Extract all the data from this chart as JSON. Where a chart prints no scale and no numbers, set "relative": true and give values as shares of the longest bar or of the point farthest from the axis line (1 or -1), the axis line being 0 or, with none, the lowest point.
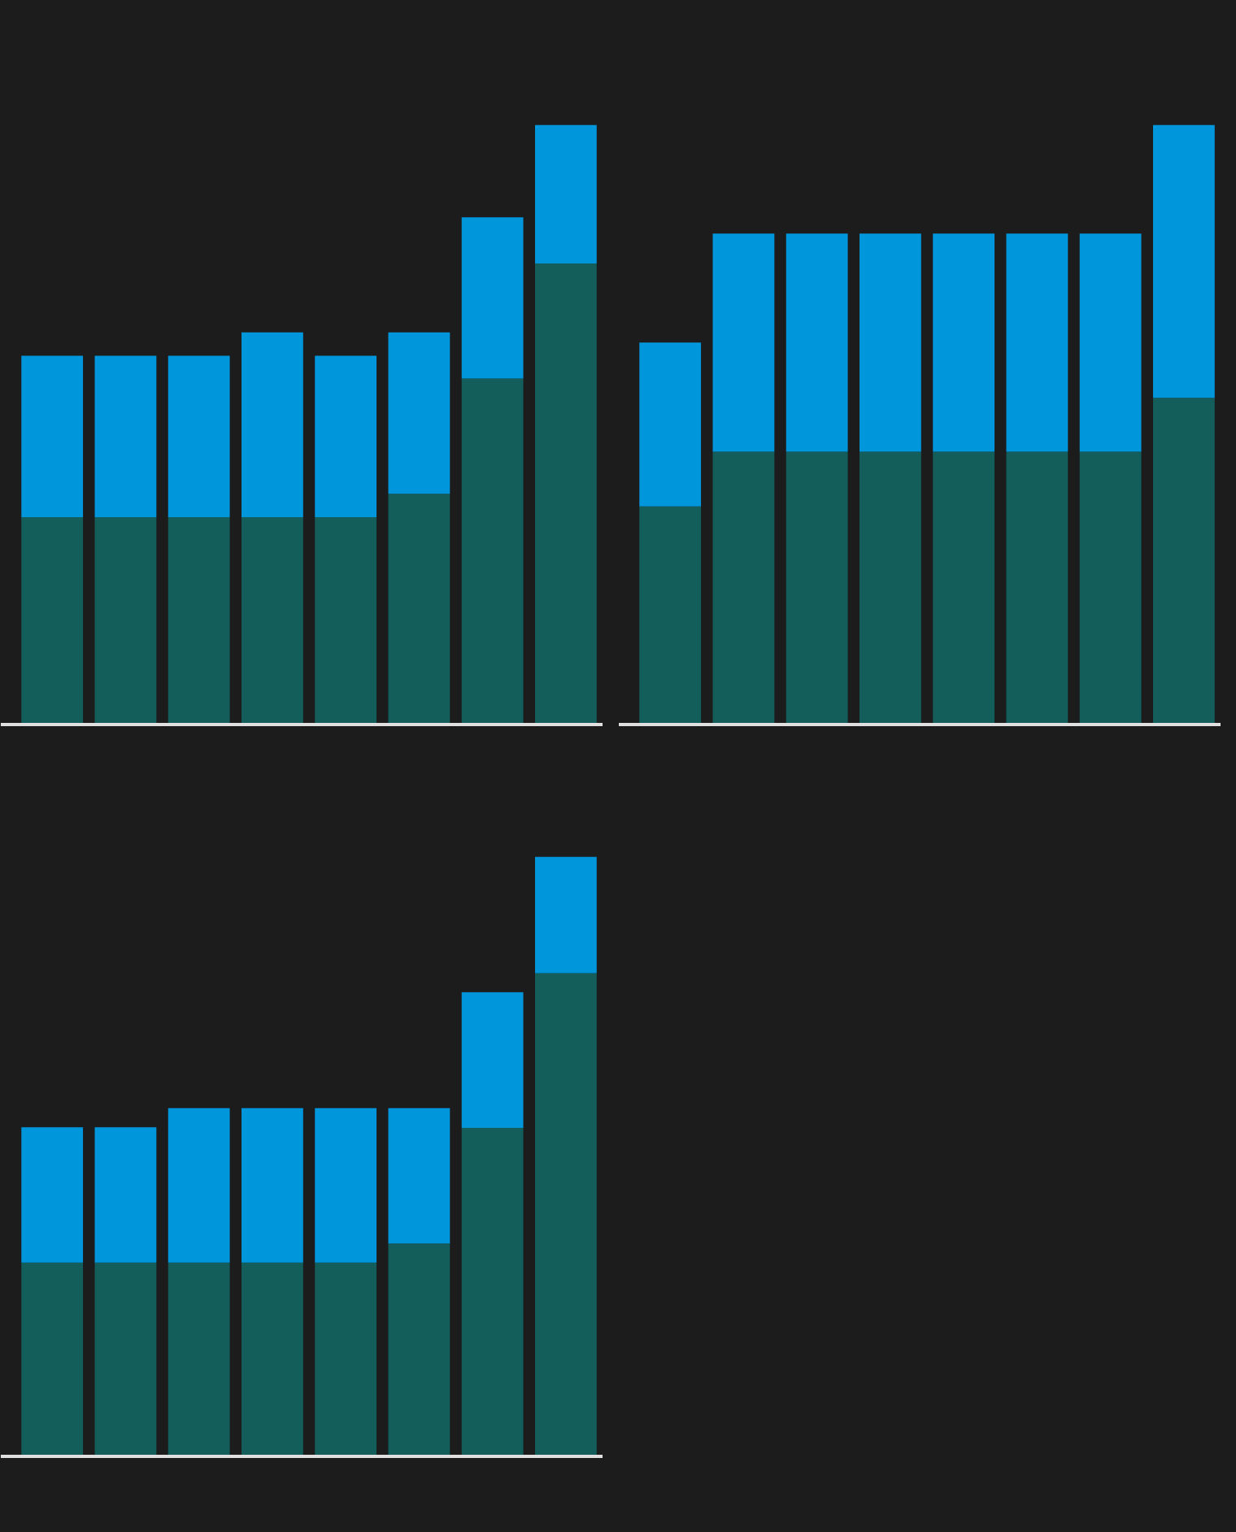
{
  "chart_data": [
    {
      "type": "bar",
      "stacked": true,
      "relative": true,
      "categories": [
        null,
        null,
        null,
        null,
        null,
        null,
        null,
        null
      ],
      "series": [
        {
          "color": "#135e5a",
          "values": [
            0.346,
            0.346,
            0.346,
            0.346,
            0.346,
            0.385,
            0.577,
            0.769
          ]
        },
        {
          "color": "#0096dc",
          "values": [
            0.269,
            0.269,
            0.269,
            0.308,
            0.269,
            0.269,
            0.269,
            0.231
          ]
        }
      ]
    },
    {
      "type": "bar",
      "stacked": true,
      "relative": true,
      "categories": [
        null,
        null,
        null,
        null,
        null,
        null,
        null,
        null
      ],
      "series": [
        {
          "color": "#135e5a",
          "values": [
            0.364,
            0.455,
            0.455,
            0.455,
            0.455,
            0.455,
            0.455,
            0.545
          ]
        },
        {
          "color": "#0096dc",
          "values": [
            0.273,
            0.364,
            0.364,
            0.364,
            0.364,
            0.364,
            0.364,
            0.455
          ]
        }
      ]
    },
    {
      "type": "bar",
      "stacked": true,
      "relative": true,
      "categories": [
        null,
        null,
        null,
        null,
        null,
        null,
        null,
        null
      ],
      "series": [
        {
          "color": "#135e5a",
          "values": [
            0.323,
            0.323,
            0.323,
            0.323,
            0.323,
            0.355,
            0.548,
            0.806
          ]
        },
        {
          "color": "#0096dc",
          "values": [
            0.226,
            0.226,
            0.258,
            0.258,
            0.258,
            0.226,
            0.226,
            0.194
          ]
        }
      ]
    }
  ]
}
